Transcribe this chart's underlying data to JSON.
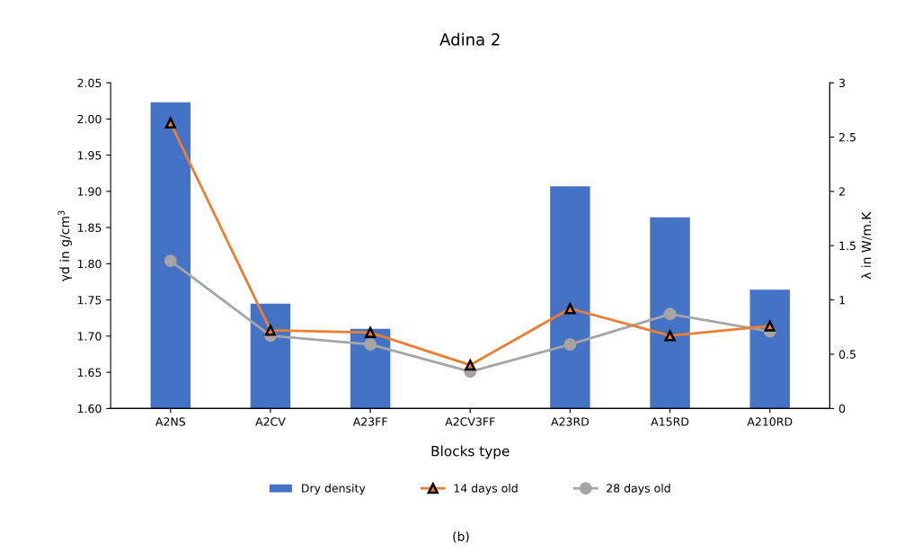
{
  "chart_data": {
    "type": "bar",
    "title": "Adina 2",
    "xlabel": "Blocks type",
    "ylabel": "γd in g/cm$^{3}$",
    "y2label": "λ in W/m.K",
    "categories": [
      "A2NS",
      "A2CV",
      "A23FF",
      "A2CV3FF",
      "A23RD",
      "A15RD",
      "A210RD"
    ],
    "series": [
      {
        "name": "Dry density",
        "color": "#4472c4",
        "values": [
          2.023,
          1.745,
          1.71,
          null,
          1.907,
          1.864,
          1.764
        ]
      },
      {
        "name": "14 days old",
        "type": "line",
        "axis": "y2",
        "marker": "triangle",
        "color": "#ed7d31",
        "values": [
          2.63,
          0.72,
          0.7,
          0.4,
          0.92,
          0.67,
          0.76
        ]
      },
      {
        "name": "28 days old",
        "type": "line",
        "axis": "y2",
        "marker": "circle",
        "color": "#a5a5a5",
        "values": [
          1.36,
          0.67,
          0.59,
          0.34,
          0.59,
          0.87,
          0.71
        ]
      }
    ],
    "ylim": [
      1.6,
      2.05
    ],
    "yticks": [
      {
        "value": 1.6,
        "label": "1.60"
      },
      {
        "value": 1.65,
        "label": "1.65"
      },
      {
        "value": 1.7,
        "label": "1.70"
      },
      {
        "value": 1.75,
        "label": "1.75"
      },
      {
        "value": 1.8,
        "label": "1.80"
      },
      {
        "value": 1.85,
        "label": "1.85"
      },
      {
        "value": 1.9,
        "label": "1.90"
      },
      {
        "value": 1.95,
        "label": "1.95"
      },
      {
        "value": 2.0,
        "label": "2.00"
      },
      {
        "value": 2.05,
        "label": "2.05"
      }
    ],
    "y2lim": [
      0,
      3
    ],
    "y2ticks": [
      0,
      0.5,
      1,
      1.5,
      2,
      2.5,
      3
    ],
    "legend": "bottom",
    "grid": false,
    "annotations": [
      "(b)"
    ]
  }
}
